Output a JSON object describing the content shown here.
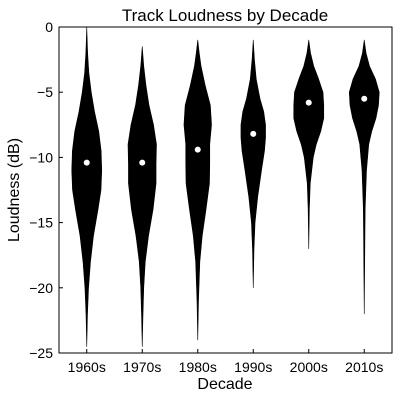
{
  "chart_data": {
    "type": "violin",
    "title": "Track Loudness by Decade",
    "xlabel": "Decade",
    "ylabel": "Loudness (dB)",
    "categories": [
      "1960s",
      "1970s",
      "1980s",
      "1990s",
      "2000s",
      "2010s"
    ],
    "ylim": [
      -25,
      0
    ],
    "yticks": [
      0,
      -5,
      -10,
      -15,
      -20,
      -25
    ],
    "grid": false,
    "legend": "none",
    "colors": {
      "violin": "#000000",
      "median_marker": "#ffffff"
    },
    "medians": [
      -10.4,
      -10.4,
      -9.4,
      -8.2,
      -5.8,
      -5.5
    ],
    "ranges": [
      [
        -24.5,
        0
      ],
      [
        -24.5,
        -1.5
      ],
      [
        -24,
        -1
      ],
      [
        -20,
        -1
      ],
      [
        -17,
        -1
      ],
      [
        -22,
        -1
      ]
    ],
    "density_profiles": [
      [
        [
          -24.5,
          0.0
        ],
        [
          -22,
          0.05
        ],
        [
          -20,
          0.12
        ],
        [
          -18,
          0.25
        ],
        [
          -16,
          0.45
        ],
        [
          -14,
          0.75
        ],
        [
          -12.5,
          0.95
        ],
        [
          -11,
          1.0
        ],
        [
          -9.5,
          0.96
        ],
        [
          -8,
          0.8
        ],
        [
          -6.5,
          0.52
        ],
        [
          -5,
          0.3
        ],
        [
          -3.5,
          0.14
        ],
        [
          -2,
          0.06
        ],
        [
          0,
          0.0
        ]
      ],
      [
        [
          -24.5,
          0.0
        ],
        [
          -22,
          0.05
        ],
        [
          -20,
          0.1
        ],
        [
          -18,
          0.2
        ],
        [
          -16,
          0.42
        ],
        [
          -14,
          0.72
        ],
        [
          -12,
          0.92
        ],
        [
          -10.5,
          0.92
        ],
        [
          -9,
          0.95
        ],
        [
          -7.5,
          0.75
        ],
        [
          -6,
          0.45
        ],
        [
          -4.5,
          0.25
        ],
        [
          -3,
          0.1
        ],
        [
          -1.5,
          0.0
        ]
      ],
      [
        [
          -24,
          0.0
        ],
        [
          -21,
          0.05
        ],
        [
          -18,
          0.14
        ],
        [
          -16,
          0.3
        ],
        [
          -14,
          0.55
        ],
        [
          -12,
          0.78
        ],
        [
          -10.5,
          0.8
        ],
        [
          -9,
          0.8
        ],
        [
          -7.5,
          0.92
        ],
        [
          -6,
          0.84
        ],
        [
          -4.5,
          0.5
        ],
        [
          -3,
          0.22
        ],
        [
          -2,
          0.1
        ],
        [
          -1,
          0.0
        ]
      ],
      [
        [
          -20,
          0.0
        ],
        [
          -17,
          0.05
        ],
        [
          -15,
          0.12
        ],
        [
          -13,
          0.3
        ],
        [
          -11,
          0.55
        ],
        [
          -9.5,
          0.75
        ],
        [
          -8.5,
          0.82
        ],
        [
          -7.5,
          0.82
        ],
        [
          -6.5,
          0.7
        ],
        [
          -5.5,
          0.45
        ],
        [
          -4,
          0.2
        ],
        [
          -2.5,
          0.08
        ],
        [
          -1,
          0.0
        ]
      ],
      [
        [
          -17,
          0.0
        ],
        [
          -14,
          0.04
        ],
        [
          -12,
          0.1
        ],
        [
          -10,
          0.3
        ],
        [
          -9,
          0.5
        ],
        [
          -8,
          0.8
        ],
        [
          -7,
          1.0
        ],
        [
          -6,
          1.0
        ],
        [
          -5,
          0.95
        ],
        [
          -4,
          0.66
        ],
        [
          -3,
          0.33
        ],
        [
          -2,
          0.12
        ],
        [
          -1,
          0.0
        ]
      ],
      [
        [
          -22,
          0.0
        ],
        [
          -18,
          0.03
        ],
        [
          -14,
          0.06
        ],
        [
          -11,
          0.15
        ],
        [
          -9,
          0.3
        ],
        [
          -8,
          0.5
        ],
        [
          -7,
          0.78
        ],
        [
          -6,
          0.95
        ],
        [
          -5,
          1.0
        ],
        [
          -4,
          0.75
        ],
        [
          -3,
          0.35
        ],
        [
          -2,
          0.12
        ],
        [
          -1,
          0.0
        ]
      ]
    ]
  }
}
